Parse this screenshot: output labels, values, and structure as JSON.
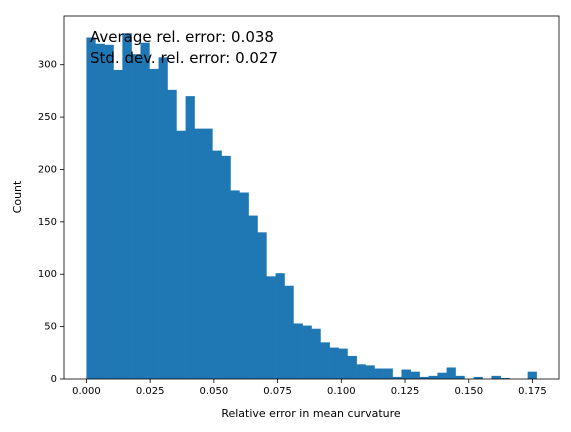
{
  "chart_data": {
    "type": "histogram",
    "x_label": "Relative error in mean curvature",
    "y_label": "Count",
    "annotations": [
      "Average rel. error: 0.038",
      "Std. dev. rel. error: 0.027"
    ],
    "color": "#1f77b4",
    "bins": [
      0,
      0.0035,
      0.0071,
      0.0106,
      0.0141,
      0.0177,
      0.0212,
      0.0247,
      0.0283,
      0.0318,
      0.0353,
      0.0389,
      0.0424,
      0.0459,
      0.0494,
      0.053,
      0.0565,
      0.06,
      0.0636,
      0.0671,
      0.0706,
      0.0742,
      0.0777,
      0.0812,
      0.0848,
      0.0883,
      0.0918,
      0.0954,
      0.0989,
      0.1024,
      0.106,
      0.1095,
      0.113,
      0.1166,
      0.1201,
      0.1236,
      0.1272,
      0.1307,
      0.1342,
      0.1377,
      0.1413,
      0.1448,
      0.1483,
      0.1519,
      0.1554,
      0.1589,
      0.1625,
      0.166,
      0.1695,
      0.1731,
      0.1766
    ],
    "counts": [
      326,
      320,
      319,
      295,
      330,
      310,
      321,
      296,
      307,
      276,
      237,
      270,
      239,
      239,
      218,
      213,
      180,
      178,
      156,
      140,
      98,
      101,
      89,
      53,
      51,
      48,
      35,
      30,
      29,
      22,
      14,
      13,
      10,
      10,
      2,
      9,
      7,
      2,
      3,
      6,
      11,
      3,
      0,
      2,
      0,
      3,
      1,
      0,
      0,
      7
    ],
    "xlim": [
      -0.0088,
      0.1854
    ],
    "ylim": [
      0,
      346.5
    ],
    "xticks": [
      {
        "value": 0,
        "label": "0.000"
      },
      0.025,
      {
        "value": 0.05,
        "label": "0.050"
      },
      0.075,
      {
        "value": 0.1,
        "label": "0.100"
      },
      0.125,
      {
        "value": 0.15,
        "label": "0.150"
      },
      0.175
    ],
    "yticks": [
      0,
      50,
      100,
      150,
      200,
      250,
      300
    ]
  }
}
